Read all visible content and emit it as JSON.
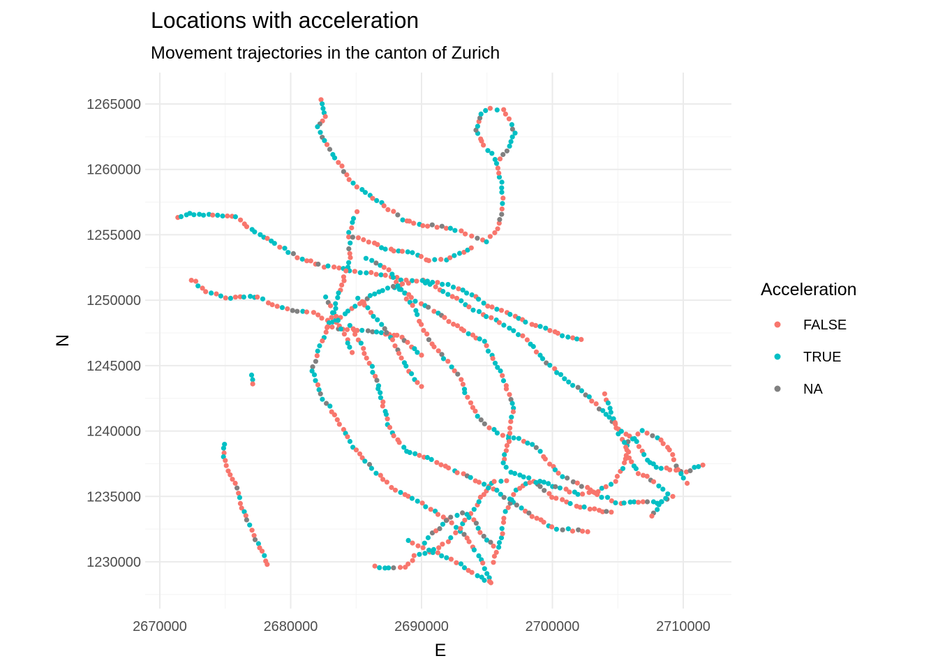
{
  "chart_data": {
    "type": "scatter",
    "title": "Locations with acceleration",
    "subtitle": "Movement trajectories in the canton of Zurich",
    "xlabel": "E",
    "ylabel": "N",
    "xlim": [
      2670000,
      2710000
    ],
    "ylim": [
      1230000,
      1265000
    ],
    "x_ticks": [
      2670000,
      2680000,
      2690000,
      2700000,
      2710000
    ],
    "y_ticks": [
      1230000,
      1235000,
      1240000,
      1245000,
      1250000,
      1255000,
      1260000,
      1265000
    ],
    "x_tick_labels": [
      "2670000",
      "2680000",
      "2690000",
      "2700000",
      "2710000"
    ],
    "y_tick_labels": [
      "1230000",
      "1235000",
      "1240000",
      "1245000",
      "1250000",
      "1255000",
      "1260000",
      "1265000"
    ],
    "grid": true,
    "legend": {
      "title": "Acceleration",
      "position": "right",
      "entries": [
        {
          "label": "FALSE",
          "color": "#f8766d"
        },
        {
          "label": "TRUE",
          "color": "#00bfc4"
        },
        {
          "label": "NA",
          "color": "#808080"
        }
      ]
    },
    "trajectories": [
      [
        [
          2682400,
          1265400
        ],
        [
          2682600,
          1264000
        ],
        [
          2682000,
          1263200
        ],
        [
          2683000,
          1261500
        ],
        [
          2684500,
          1259200
        ],
        [
          2686000,
          1258000
        ],
        [
          2687500,
          1257000
        ],
        [
          2688500,
          1256200
        ],
        [
          2689800,
          1255800
        ],
        [
          2691500,
          1255600
        ],
        [
          2693000,
          1255300
        ],
        [
          2694200,
          1254800
        ],
        [
          2695000,
          1254500
        ],
        [
          2695800,
          1255500
        ],
        [
          2696200,
          1257000
        ],
        [
          2696100,
          1259000
        ],
        [
          2695800,
          1260500
        ],
        [
          2694800,
          1261800
        ],
        [
          2694200,
          1263000
        ],
        [
          2694600,
          1264300
        ],
        [
          2695300,
          1264600
        ],
        [
          2696200,
          1264500
        ],
        [
          2696700,
          1263800
        ],
        [
          2697100,
          1262800
        ],
        [
          2696700,
          1261800
        ],
        [
          2696000,
          1260800
        ]
      ],
      [
        [
          2671300,
          1256300
        ],
        [
          2672000,
          1256600
        ],
        [
          2673000,
          1256600
        ],
        [
          2675800,
          1256300
        ],
        [
          2677300,
          1255200
        ],
        [
          2678800,
          1254300
        ],
        [
          2680500,
          1253300
        ],
        [
          2682500,
          1252600
        ],
        [
          2684500,
          1252300
        ],
        [
          2686500,
          1252000
        ],
        [
          2688500,
          1251600
        ],
        [
          2690500,
          1251500
        ],
        [
          2692000,
          1251200
        ],
        [
          2693500,
          1250600
        ],
        [
          2695000,
          1249600
        ],
        [
          2696500,
          1249100
        ],
        [
          2698000,
          1248300
        ],
        [
          2699500,
          1247800
        ],
        [
          2700800,
          1247300
        ],
        [
          2702200,
          1247000
        ]
      ],
      [
        [
          2672400,
          1251600
        ],
        [
          2673500,
          1250700
        ],
        [
          2675000,
          1250200
        ],
        [
          2676500,
          1250300
        ],
        [
          2677500,
          1250200
        ],
        [
          2679000,
          1249500
        ],
        [
          2680500,
          1249200
        ],
        [
          2681700,
          1249000
        ],
        [
          2682800,
          1248500
        ],
        [
          2683500,
          1248300
        ]
      ],
      [
        [
          2685000,
          1256700
        ],
        [
          2684500,
          1255200
        ],
        [
          2684500,
          1253200
        ],
        [
          2684000,
          1251500
        ],
        [
          2683500,
          1249800
        ],
        [
          2683000,
          1248200
        ],
        [
          2682200,
          1246500
        ],
        [
          2681600,
          1244600
        ],
        [
          2682500,
          1242500
        ],
        [
          2683800,
          1240500
        ],
        [
          2685000,
          1238500
        ],
        [
          2686500,
          1236800
        ],
        [
          2688000,
          1235500
        ],
        [
          2690000,
          1234500
        ],
        [
          2692000,
          1233200
        ],
        [
          2693500,
          1231800
        ],
        [
          2694500,
          1230200
        ],
        [
          2695300,
          1228400
        ]
      ],
      [
        [
          2684600,
          1248000
        ],
        [
          2685500,
          1246300
        ],
        [
          2686500,
          1244200
        ],
        [
          2687000,
          1242200
        ],
        [
          2687500,
          1240200
        ],
        [
          2688800,
          1238500
        ],
        [
          2690800,
          1237800
        ],
        [
          2692800,
          1236800
        ],
        [
          2694800,
          1236000
        ],
        [
          2696700,
          1234800
        ],
        [
          2698500,
          1233500
        ],
        [
          2700000,
          1232600
        ],
        [
          2702700,
          1232300
        ]
      ],
      [
        [
          2685800,
          1253200
        ],
        [
          2687500,
          1252300
        ],
        [
          2688500,
          1250800
        ],
        [
          2689500,
          1249200
        ],
        [
          2690500,
          1247000
        ],
        [
          2692000,
          1245300
        ],
        [
          2693000,
          1244000
        ],
        [
          2693500,
          1242500
        ],
        [
          2694500,
          1240800
        ],
        [
          2695800,
          1239800
        ],
        [
          2697000,
          1239500
        ],
        [
          2698500,
          1239000
        ],
        [
          2699500,
          1237800
        ],
        [
          2700800,
          1236500
        ],
        [
          2702300,
          1235800
        ],
        [
          2703800,
          1235000
        ],
        [
          2705200,
          1234400
        ],
        [
          2706600,
          1234600
        ],
        [
          2708000,
          1234500
        ],
        [
          2709200,
          1235000
        ]
      ],
      [
        [
          2688000,
          1251000
        ],
        [
          2689600,
          1250000
        ],
        [
          2691200,
          1249000
        ],
        [
          2693000,
          1247800
        ],
        [
          2694800,
          1246800
        ],
        [
          2696200,
          1244200
        ],
        [
          2697000,
          1241800
        ],
        [
          2696700,
          1239500
        ],
        [
          2696200,
          1237500
        ],
        [
          2696800,
          1236800
        ],
        [
          2697800,
          1236500
        ],
        [
          2698500,
          1236200
        ],
        [
          2700000,
          1235000
        ],
        [
          2701800,
          1234300
        ],
        [
          2703200,
          1234000
        ],
        [
          2704500,
          1233800
        ]
      ],
      [
        [
          2690000,
          1251500
        ],
        [
          2692000,
          1250500
        ],
        [
          2694000,
          1249300
        ],
        [
          2696000,
          1248300
        ],
        [
          2698000,
          1247000
        ],
        [
          2699500,
          1245200
        ],
        [
          2701000,
          1244000
        ],
        [
          2702500,
          1242800
        ],
        [
          2703800,
          1241500
        ],
        [
          2705000,
          1240200
        ],
        [
          2706500,
          1239200
        ],
        [
          2707200,
          1237800
        ],
        [
          2708000,
          1237300
        ],
        [
          2709000,
          1237000
        ],
        [
          2710200,
          1236900
        ],
        [
          2711500,
          1237400
        ]
      ],
      [
        [
          2695500,
          1230000
        ],
        [
          2696100,
          1231800
        ],
        [
          2696400,
          1233800
        ],
        [
          2697200,
          1235500
        ],
        [
          2698000,
          1236000
        ],
        [
          2699000,
          1236200
        ],
        [
          2700300,
          1235700
        ],
        [
          2702000,
          1235200
        ],
        [
          2703500,
          1235400
        ],
        [
          2704800,
          1236200
        ],
        [
          2705500,
          1237500
        ],
        [
          2705800,
          1239200
        ],
        [
          2706800,
          1240000
        ],
        [
          2708000,
          1239500
        ],
        [
          2709000,
          1238500
        ],
        [
          2709600,
          1237000
        ],
        [
          2710300,
          1236000
        ]
      ],
      [
        [
          2704000,
          1242800
        ],
        [
          2704600,
          1241000
        ],
        [
          2705100,
          1239800
        ],
        [
          2705600,
          1238700
        ],
        [
          2706100,
          1237600
        ],
        [
          2706600,
          1236800
        ],
        [
          2707500,
          1236300
        ],
        [
          2708100,
          1235800
        ],
        [
          2708800,
          1235200
        ],
        [
          2707600,
          1233500
        ]
      ],
      [
        [
          2682800,
          1248000
        ],
        [
          2684000,
          1247800
        ],
        [
          2685500,
          1247700
        ],
        [
          2687200,
          1247400
        ],
        [
          2688500,
          1247200
        ],
        [
          2689200,
          1246500
        ],
        [
          2690000,
          1245800
        ]
      ],
      [
        [
          2683500,
          1248500
        ],
        [
          2685000,
          1249500
        ],
        [
          2686400,
          1250500
        ],
        [
          2687800,
          1251000
        ],
        [
          2689000,
          1251300
        ]
      ],
      [
        [
          2686500,
          1229600
        ],
        [
          2687500,
          1229500
        ],
        [
          2688700,
          1229600
        ],
        [
          2689500,
          1230400
        ],
        [
          2691000,
          1230900
        ],
        [
          2692000,
          1231600
        ],
        [
          2692900,
          1232500
        ],
        [
          2693600,
          1233500
        ],
        [
          2694200,
          1234300
        ],
        [
          2694700,
          1235200
        ],
        [
          2695600,
          1236200
        ],
        [
          2696500,
          1236200
        ]
      ],
      [
        [
          2690200,
          1231500
        ],
        [
          2690800,
          1232200
        ],
        [
          2691600,
          1232800
        ],
        [
          2692300,
          1233400
        ],
        [
          2693100,
          1233800
        ],
        [
          2694000,
          1233200
        ],
        [
          2694700,
          1232000
        ],
        [
          2695500,
          1231200
        ]
      ],
      [
        [
          2689000,
          1231600
        ],
        [
          2690500,
          1230900
        ],
        [
          2691500,
          1230500
        ],
        [
          2692600,
          1230000
        ],
        [
          2693300,
          1229600
        ],
        [
          2694200,
          1229000
        ],
        [
          2695200,
          1228500
        ]
      ],
      [
        [
          2677000,
          1244200
        ],
        [
          2677100,
          1243600
        ]
      ],
      [
        [
          2675000,
          1239000
        ],
        [
          2674800,
          1238000
        ],
        [
          2675200,
          1237000
        ],
        [
          2675800,
          1236000
        ],
        [
          2676200,
          1234500
        ],
        [
          2676700,
          1233200
        ],
        [
          2677200,
          1232000
        ],
        [
          2677800,
          1230800
        ],
        [
          2678200,
          1229800
        ]
      ],
      [
        [
          2684800,
          1254800
        ],
        [
          2686000,
          1254500
        ],
        [
          2687300,
          1253900
        ],
        [
          2688600,
          1253700
        ],
        [
          2689700,
          1253500
        ],
        [
          2690600,
          1253000
        ],
        [
          2691900,
          1253100
        ],
        [
          2692900,
          1253600
        ],
        [
          2693800,
          1254000
        ]
      ],
      [
        [
          2685200,
          1250200
        ],
        [
          2686100,
          1249100
        ],
        [
          2686900,
          1248100
        ],
        [
          2687800,
          1246900
        ],
        [
          2688500,
          1245600
        ],
        [
          2689200,
          1244300
        ],
        [
          2690000,
          1243400
        ]
      ],
      [
        [
          2682600,
          1250300
        ],
        [
          2683000,
          1249500
        ],
        [
          2683400,
          1248700
        ],
        [
          2683900,
          1247800
        ],
        [
          2684300,
          1247000
        ],
        [
          2684700,
          1246000
        ]
      ]
    ]
  }
}
